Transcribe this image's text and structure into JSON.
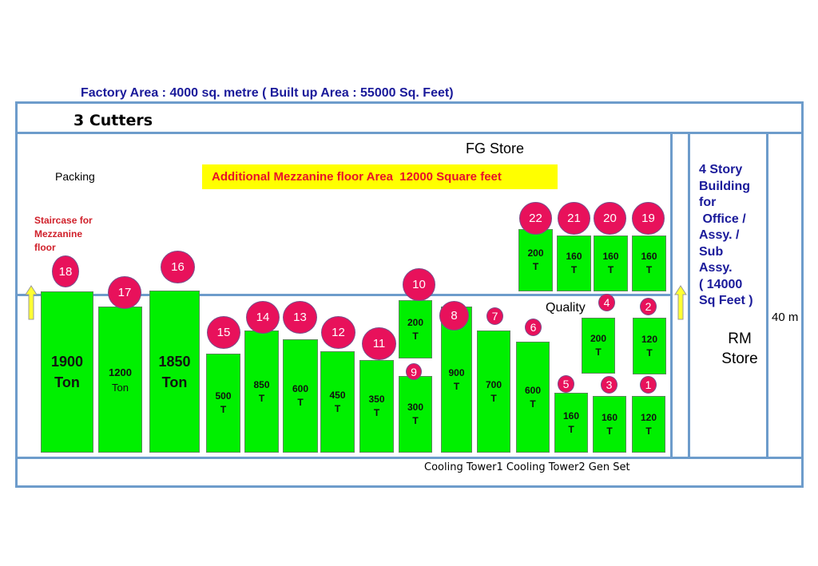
{
  "title": "Factory Area : 4000 sq. metre ( Built up Area : 55000 Sq. Feet)",
  "cutters": "3 Cutters",
  "fg_store": "FG Store",
  "packing": "Packing",
  "mezzanine_note": "Additional Mezzanine floor Area  12000 Square feet",
  "staircase": [
    "Staircase for",
    "Mezzanine",
    "floor"
  ],
  "quality": "Quality",
  "office_building": [
    "4 Story",
    "Building",
    "for",
    " Office /",
    "Assy. /",
    "Sub",
    "Assy.",
    "( 14000",
    "Sq Feet )"
  ],
  "rm_store": [
    "RM",
    "Store"
  ],
  "width_label": "40 m",
  "utilities": "Cooling Tower1 Cooling Tower2 Gen Set",
  "machines": [
    {
      "no": "18",
      "l1": "1900",
      "l2": "Ton"
    },
    {
      "no": "17",
      "l1": "1200",
      "l2": "Ton"
    },
    {
      "no": "16",
      "l1": "1850",
      "l2": "Ton"
    },
    {
      "no": "15",
      "l1": "500",
      "l2": "T"
    },
    {
      "no": "14",
      "l1": "850",
      "l2": "T"
    },
    {
      "no": "13",
      "l1": "600",
      "l2": "T"
    },
    {
      "no": "12",
      "l1": "450",
      "l2": "T"
    },
    {
      "no": "11",
      "l1": "350",
      "l2": "T"
    },
    {
      "no": "10",
      "l1": "200",
      "l2": "T"
    },
    {
      "no": "9",
      "l1": "300",
      "l2": "T"
    },
    {
      "no": "8",
      "l1": "900",
      "l2": "T"
    },
    {
      "no": "7",
      "l1": "700",
      "l2": "T"
    },
    {
      "no": "6",
      "l1": "600",
      "l2": "T"
    },
    {
      "no": "5",
      "l1": "160",
      "l2": "T"
    },
    {
      "no": "3",
      "l1": "160",
      "l2": "T"
    },
    {
      "no": "1",
      "l1": "120",
      "l2": "T"
    },
    {
      "no": "4",
      "l1": "200",
      "l2": "T"
    },
    {
      "no": "2",
      "l1": "120",
      "l2": "T"
    },
    {
      "no": "22",
      "l1": "200",
      "l2": "T"
    },
    {
      "no": "21",
      "l1": "160",
      "l2": "T"
    },
    {
      "no": "20",
      "l1": "160",
      "l2": "T"
    },
    {
      "no": "19",
      "l1": "160",
      "l2": "T"
    }
  ],
  "colors": {
    "machine": "#00f000",
    "badge": "#e8115b",
    "wall": "#6d9ccb",
    "highlight": "#ffff00",
    "arrow": "#ffff33"
  }
}
